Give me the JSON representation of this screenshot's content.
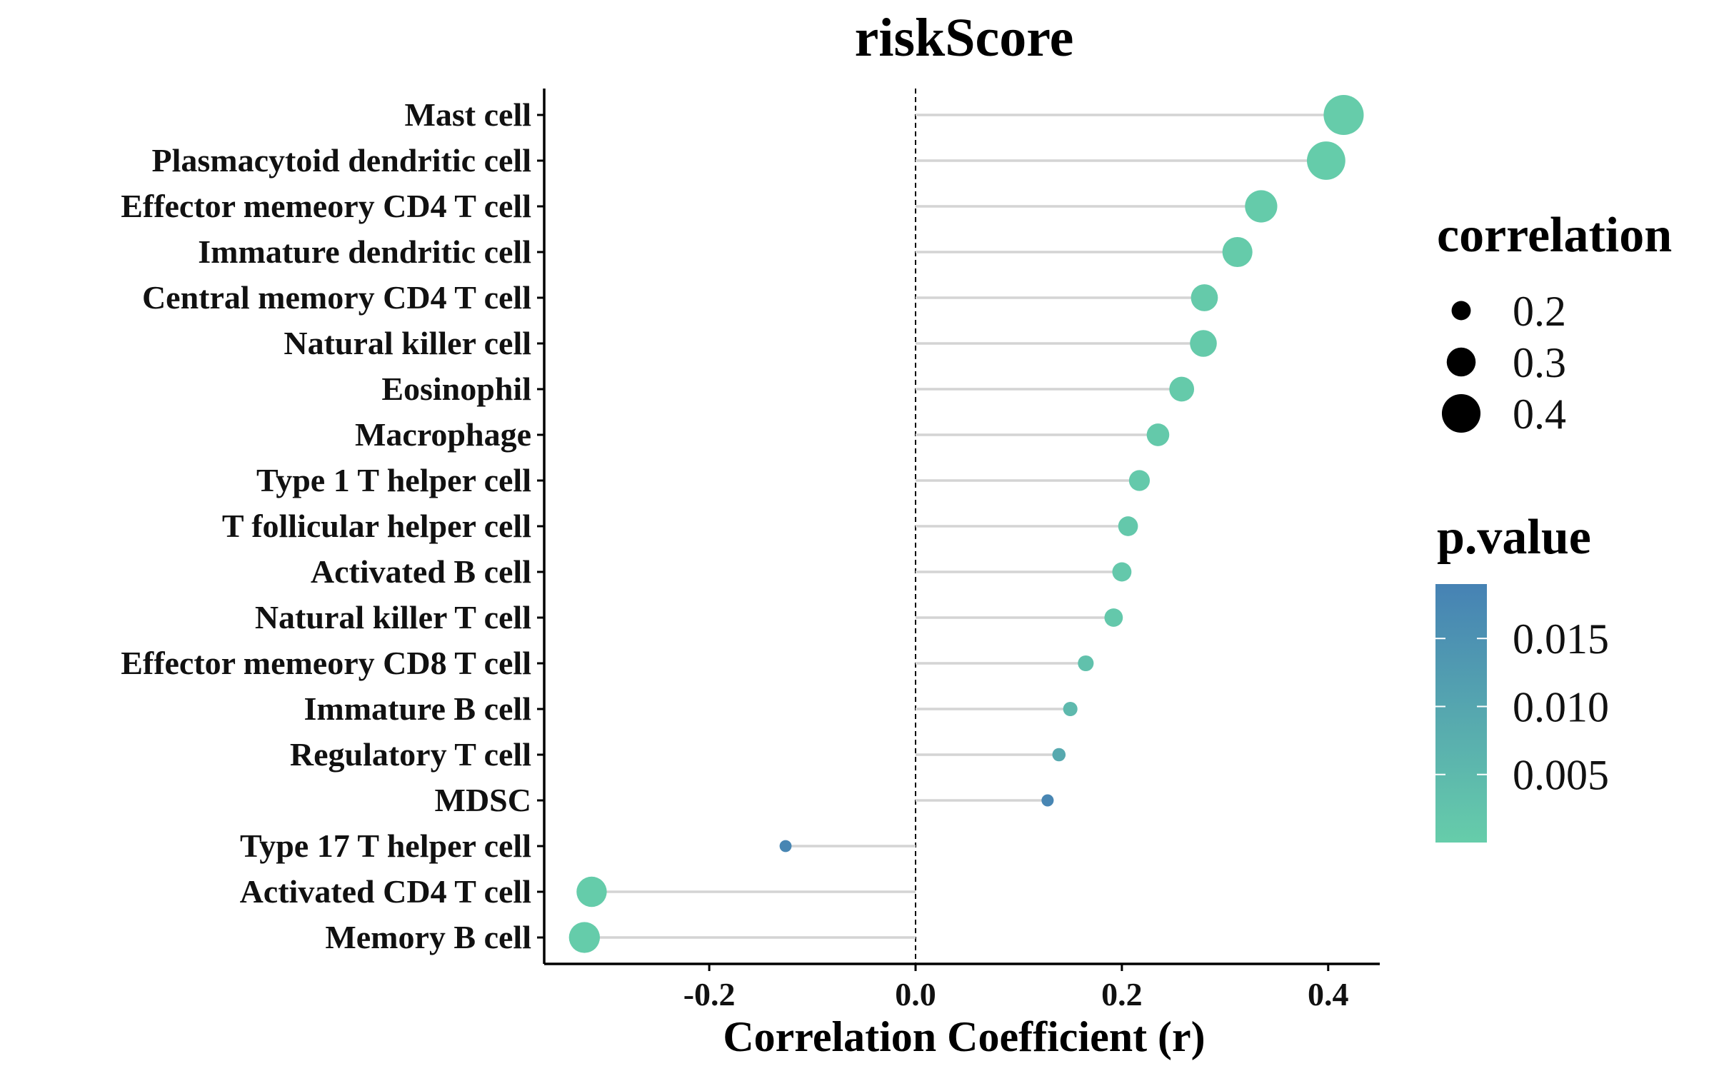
{
  "chart_data": {
    "type": "lollipop",
    "title": "riskScore",
    "xlabel": "Correlation Coefficient (r)",
    "ylabel": "",
    "xlim": [
      -0.36,
      0.45
    ],
    "xticks": [
      -0.2,
      0.0,
      0.2,
      0.4
    ],
    "xtick_labels": [
      "-0.2",
      "0.0",
      "0.2",
      "0.4"
    ],
    "reference_line": 0.0,
    "grid": false,
    "categories": [
      "Mast cell",
      "Plasmacytoid dendritic cell",
      "Effector memeory CD4 T cell",
      "Immature dendritic cell",
      "Central memory CD4 T cell",
      "Natural killer cell",
      "Eosinophil",
      "Macrophage",
      "Type 1 T helper cell",
      "T follicular helper cell",
      "Activated B cell",
      "Natural killer T cell",
      "Effector memeory CD8 T cell",
      "Immature  B cell",
      "Regulatory T cell",
      "MDSC",
      "Type 17 T helper cell",
      "Activated CD4 T cell",
      "Memory B cell"
    ],
    "values": [
      0.415,
      0.398,
      0.335,
      0.312,
      0.28,
      0.279,
      0.258,
      0.235,
      0.217,
      0.206,
      0.2,
      0.192,
      0.165,
      0.15,
      0.139,
      0.128,
      -0.126,
      -0.314,
      -0.321
    ],
    "p_values": [
      0.0002,
      0.0003,
      0.0004,
      0.0005,
      0.0007,
      0.0007,
      0.0008,
      0.0009,
      0.001,
      0.0012,
      0.0012,
      0.0013,
      0.003,
      0.005,
      0.009,
      0.018,
      0.018,
      0.0003,
      0.0003
    ],
    "legend": {
      "position": "right",
      "size_title": "correlation",
      "size_values": [
        0.2,
        0.3,
        0.4
      ],
      "size_labels": [
        "0.2",
        "0.3",
        "0.4"
      ],
      "color_title": "p.value",
      "color_range": [
        0.0,
        0.019
      ],
      "color_ticks": [
        0.015,
        0.01,
        0.005
      ],
      "color_tick_labels": [
        "0.015",
        "0.010",
        "0.005"
      ],
      "color_low": "#66cdaa",
      "color_high": "#4682b4"
    }
  }
}
